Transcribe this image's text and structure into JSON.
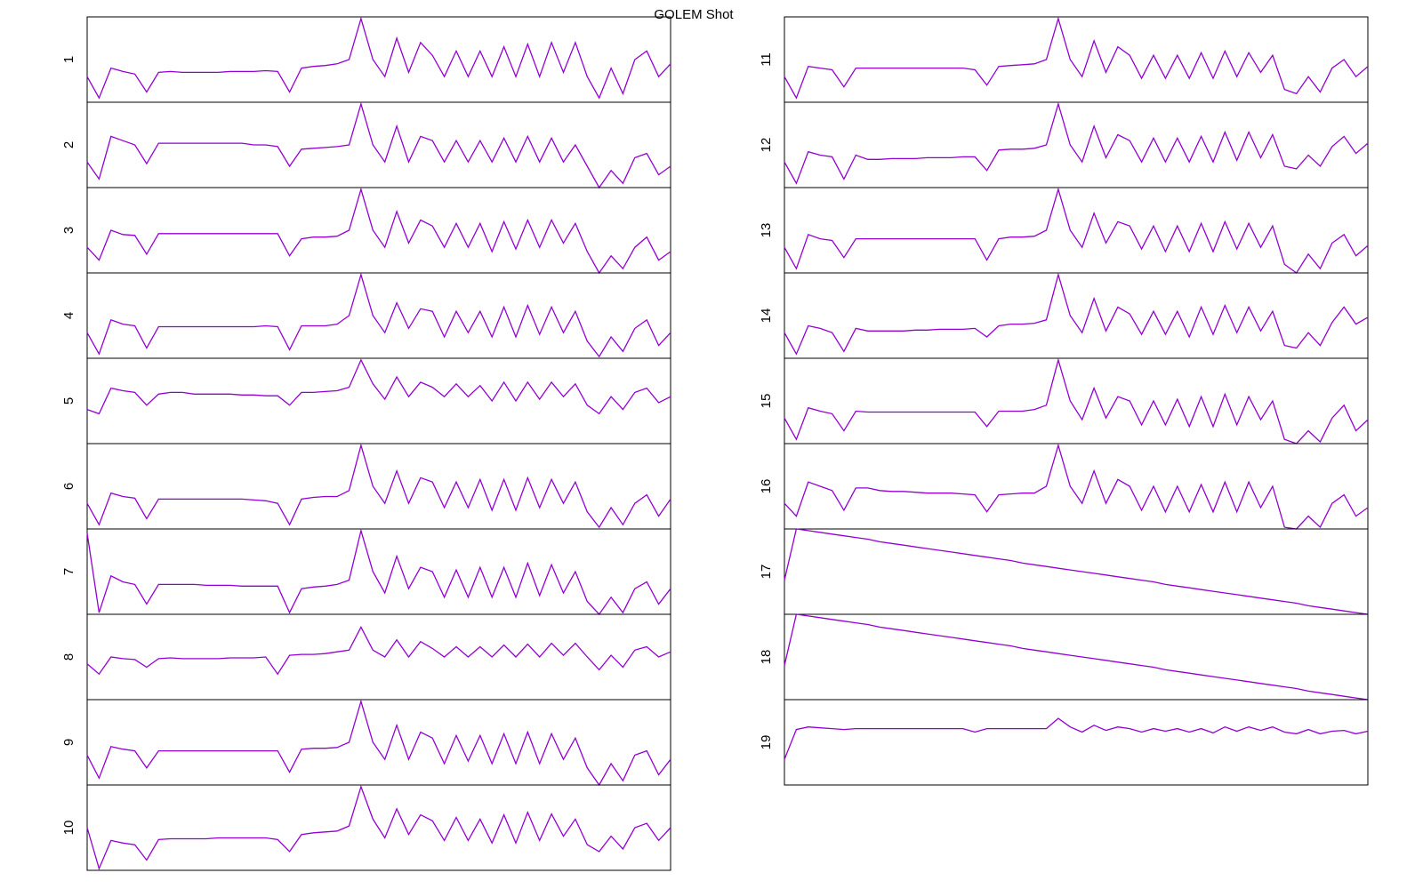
{
  "title": "GOLEM Shot",
  "chart_data": [
    {
      "type": "line",
      "label": "1",
      "color": "#9400d3",
      "ylim": [
        0,
        1
      ],
      "values": [
        0.3,
        0.05,
        0.4,
        0.36,
        0.33,
        0.12,
        0.35,
        0.36,
        0.35,
        0.35,
        0.35,
        0.35,
        0.36,
        0.36,
        0.36,
        0.37,
        0.36,
        0.12,
        0.4,
        0.42,
        0.43,
        0.45,
        0.5,
        0.98,
        0.5,
        0.3,
        0.75,
        0.35,
        0.7,
        0.55,
        0.3,
        0.6,
        0.3,
        0.6,
        0.3,
        0.65,
        0.3,
        0.68,
        0.3,
        0.7,
        0.35,
        0.7,
        0.3,
        0.05,
        0.4,
        0.1,
        0.5,
        0.6,
        0.3,
        0.45
      ]
    },
    {
      "type": "line",
      "label": "2",
      "color": "#9400d3",
      "ylim": [
        0,
        1
      ],
      "values": [
        0.3,
        0.1,
        0.6,
        0.55,
        0.5,
        0.28,
        0.52,
        0.52,
        0.52,
        0.52,
        0.52,
        0.52,
        0.52,
        0.52,
        0.5,
        0.5,
        0.48,
        0.25,
        0.45,
        0.46,
        0.47,
        0.48,
        0.5,
        0.98,
        0.5,
        0.3,
        0.72,
        0.3,
        0.6,
        0.55,
        0.3,
        0.55,
        0.3,
        0.55,
        0.3,
        0.58,
        0.3,
        0.6,
        0.3,
        0.58,
        0.3,
        0.5,
        0.25,
        0.0,
        0.2,
        0.05,
        0.35,
        0.4,
        0.15,
        0.25
      ]
    },
    {
      "type": "line",
      "label": "3",
      "color": "#9400d3",
      "ylim": [
        0,
        1
      ],
      "values": [
        0.3,
        0.15,
        0.5,
        0.45,
        0.44,
        0.22,
        0.46,
        0.46,
        0.46,
        0.46,
        0.46,
        0.46,
        0.46,
        0.46,
        0.46,
        0.46,
        0.46,
        0.2,
        0.4,
        0.42,
        0.42,
        0.43,
        0.5,
        0.98,
        0.5,
        0.3,
        0.72,
        0.35,
        0.62,
        0.55,
        0.3,
        0.58,
        0.3,
        0.58,
        0.25,
        0.6,
        0.28,
        0.62,
        0.3,
        0.62,
        0.35,
        0.58,
        0.25,
        0.0,
        0.2,
        0.05,
        0.3,
        0.42,
        0.15,
        0.25
      ]
    },
    {
      "type": "line",
      "label": "4",
      "color": "#9400d3",
      "ylim": [
        0,
        1
      ],
      "values": [
        0.3,
        0.05,
        0.45,
        0.4,
        0.38,
        0.12,
        0.37,
        0.37,
        0.37,
        0.37,
        0.37,
        0.37,
        0.37,
        0.37,
        0.37,
        0.38,
        0.37,
        0.1,
        0.38,
        0.38,
        0.38,
        0.4,
        0.5,
        0.98,
        0.5,
        0.3,
        0.65,
        0.35,
        0.58,
        0.55,
        0.25,
        0.55,
        0.3,
        0.55,
        0.25,
        0.6,
        0.25,
        0.62,
        0.28,
        0.6,
        0.3,
        0.55,
        0.2,
        0.02,
        0.25,
        0.08,
        0.35,
        0.45,
        0.15,
        0.3
      ]
    },
    {
      "type": "line",
      "label": "5",
      "color": "#9400d3",
      "ylim": [
        0,
        1
      ],
      "values": [
        0.4,
        0.35,
        0.65,
        0.62,
        0.6,
        0.45,
        0.58,
        0.6,
        0.6,
        0.58,
        0.58,
        0.58,
        0.58,
        0.57,
        0.57,
        0.56,
        0.56,
        0.45,
        0.6,
        0.6,
        0.61,
        0.62,
        0.66,
        0.98,
        0.7,
        0.52,
        0.78,
        0.55,
        0.72,
        0.66,
        0.55,
        0.7,
        0.55,
        0.68,
        0.5,
        0.72,
        0.5,
        0.72,
        0.52,
        0.72,
        0.55,
        0.7,
        0.45,
        0.35,
        0.55,
        0.4,
        0.6,
        0.65,
        0.48,
        0.55
      ]
    },
    {
      "type": "line",
      "label": "6",
      "color": "#9400d3",
      "ylim": [
        0,
        1
      ],
      "values": [
        0.3,
        0.05,
        0.42,
        0.38,
        0.36,
        0.12,
        0.35,
        0.35,
        0.35,
        0.35,
        0.35,
        0.35,
        0.35,
        0.35,
        0.34,
        0.33,
        0.3,
        0.05,
        0.35,
        0.37,
        0.38,
        0.38,
        0.45,
        0.98,
        0.5,
        0.3,
        0.68,
        0.3,
        0.6,
        0.55,
        0.25,
        0.55,
        0.25,
        0.58,
        0.22,
        0.58,
        0.22,
        0.6,
        0.25,
        0.58,
        0.3,
        0.55,
        0.2,
        0.02,
        0.25,
        0.05,
        0.3,
        0.4,
        0.15,
        0.35
      ]
    },
    {
      "type": "line",
      "label": "7",
      "color": "#9400d3",
      "ylim": [
        0,
        1
      ],
      "values": [
        0.95,
        0.02,
        0.45,
        0.38,
        0.35,
        0.12,
        0.35,
        0.35,
        0.35,
        0.35,
        0.34,
        0.34,
        0.34,
        0.33,
        0.33,
        0.33,
        0.33,
        0.02,
        0.3,
        0.32,
        0.33,
        0.35,
        0.4,
        0.98,
        0.5,
        0.25,
        0.68,
        0.3,
        0.55,
        0.5,
        0.2,
        0.52,
        0.2,
        0.55,
        0.2,
        0.55,
        0.2,
        0.6,
        0.22,
        0.58,
        0.25,
        0.5,
        0.15,
        0.0,
        0.2,
        0.02,
        0.3,
        0.38,
        0.12,
        0.3
      ]
    },
    {
      "type": "line",
      "label": "8",
      "color": "#9400d3",
      "ylim": [
        0,
        1
      ],
      "values": [
        0.42,
        0.3,
        0.5,
        0.48,
        0.47,
        0.38,
        0.48,
        0.49,
        0.48,
        0.48,
        0.48,
        0.48,
        0.49,
        0.49,
        0.49,
        0.5,
        0.3,
        0.52,
        0.53,
        0.53,
        0.54,
        0.56,
        0.58,
        0.85,
        0.58,
        0.5,
        0.7,
        0.5,
        0.68,
        0.6,
        0.5,
        0.62,
        0.5,
        0.62,
        0.5,
        0.64,
        0.5,
        0.65,
        0.5,
        0.66,
        0.52,
        0.66,
        0.5,
        0.35,
        0.52,
        0.38,
        0.58,
        0.62,
        0.5,
        0.56
      ]
    },
    {
      "type": "line",
      "label": "9",
      "color": "#9400d3",
      "ylim": [
        0,
        1
      ],
      "values": [
        0.35,
        0.08,
        0.45,
        0.42,
        0.4,
        0.2,
        0.4,
        0.4,
        0.4,
        0.4,
        0.4,
        0.4,
        0.4,
        0.4,
        0.4,
        0.4,
        0.4,
        0.15,
        0.42,
        0.43,
        0.43,
        0.44,
        0.5,
        0.98,
        0.5,
        0.3,
        0.7,
        0.3,
        0.62,
        0.55,
        0.25,
        0.58,
        0.28,
        0.58,
        0.25,
        0.6,
        0.25,
        0.62,
        0.25,
        0.6,
        0.3,
        0.55,
        0.2,
        0.0,
        0.25,
        0.05,
        0.35,
        0.4,
        0.12,
        0.3
      ]
    },
    {
      "type": "line",
      "label": "10",
      "color": "#9400d3",
      "ylim": [
        0,
        1
      ],
      "values": [
        0.5,
        0.02,
        0.35,
        0.32,
        0.3,
        0.12,
        0.36,
        0.37,
        0.37,
        0.37,
        0.37,
        0.38,
        0.38,
        0.38,
        0.38,
        0.38,
        0.36,
        0.22,
        0.42,
        0.44,
        0.45,
        0.46,
        0.52,
        0.98,
        0.6,
        0.38,
        0.72,
        0.42,
        0.65,
        0.58,
        0.35,
        0.62,
        0.35,
        0.6,
        0.32,
        0.65,
        0.32,
        0.68,
        0.35,
        0.66,
        0.4,
        0.6,
        0.3,
        0.22,
        0.4,
        0.25,
        0.5,
        0.55,
        0.35,
        0.5
      ]
    },
    {
      "type": "line",
      "label": "11",
      "color": "#9400d3",
      "ylim": [
        0,
        1
      ],
      "values": [
        0.3,
        0.05,
        0.42,
        0.4,
        0.38,
        0.18,
        0.4,
        0.4,
        0.4,
        0.4,
        0.4,
        0.4,
        0.4,
        0.4,
        0.4,
        0.4,
        0.38,
        0.2,
        0.42,
        0.43,
        0.44,
        0.45,
        0.5,
        0.98,
        0.5,
        0.3,
        0.72,
        0.35,
        0.65,
        0.55,
        0.28,
        0.55,
        0.28,
        0.55,
        0.28,
        0.58,
        0.28,
        0.6,
        0.3,
        0.58,
        0.35,
        0.55,
        0.15,
        0.1,
        0.3,
        0.12,
        0.4,
        0.5,
        0.3,
        0.42
      ]
    },
    {
      "type": "line",
      "label": "12",
      "color": "#9400d3",
      "ylim": [
        0,
        1
      ],
      "values": [
        0.3,
        0.05,
        0.42,
        0.38,
        0.36,
        0.1,
        0.38,
        0.33,
        0.33,
        0.34,
        0.34,
        0.34,
        0.35,
        0.35,
        0.35,
        0.36,
        0.36,
        0.2,
        0.44,
        0.45,
        0.45,
        0.46,
        0.5,
        0.98,
        0.5,
        0.3,
        0.72,
        0.35,
        0.62,
        0.55,
        0.3,
        0.58,
        0.3,
        0.58,
        0.3,
        0.6,
        0.3,
        0.65,
        0.32,
        0.65,
        0.35,
        0.62,
        0.25,
        0.22,
        0.38,
        0.25,
        0.48,
        0.6,
        0.4,
        0.52
      ]
    },
    {
      "type": "line",
      "label": "13",
      "color": "#9400d3",
      "ylim": [
        0,
        1
      ],
      "values": [
        0.3,
        0.05,
        0.45,
        0.4,
        0.38,
        0.18,
        0.4,
        0.4,
        0.4,
        0.4,
        0.4,
        0.4,
        0.4,
        0.4,
        0.4,
        0.4,
        0.4,
        0.15,
        0.4,
        0.42,
        0.42,
        0.43,
        0.5,
        0.98,
        0.5,
        0.3,
        0.7,
        0.35,
        0.6,
        0.55,
        0.28,
        0.55,
        0.25,
        0.55,
        0.25,
        0.58,
        0.25,
        0.6,
        0.28,
        0.58,
        0.3,
        0.55,
        0.1,
        0.0,
        0.22,
        0.05,
        0.35,
        0.45,
        0.2,
        0.32
      ]
    },
    {
      "type": "line",
      "label": "14",
      "color": "#9400d3",
      "ylim": [
        0,
        1
      ],
      "values": [
        0.3,
        0.05,
        0.38,
        0.35,
        0.3,
        0.08,
        0.35,
        0.32,
        0.32,
        0.32,
        0.32,
        0.33,
        0.33,
        0.34,
        0.34,
        0.34,
        0.35,
        0.25,
        0.38,
        0.4,
        0.4,
        0.41,
        0.45,
        0.98,
        0.5,
        0.3,
        0.7,
        0.32,
        0.6,
        0.52,
        0.28,
        0.55,
        0.28,
        0.55,
        0.25,
        0.6,
        0.28,
        0.62,
        0.3,
        0.6,
        0.32,
        0.55,
        0.15,
        0.12,
        0.3,
        0.15,
        0.42,
        0.6,
        0.4,
        0.48
      ]
    },
    {
      "type": "line",
      "label": "15",
      "color": "#9400d3",
      "ylim": [
        0,
        1
      ],
      "values": [
        0.3,
        0.05,
        0.42,
        0.38,
        0.35,
        0.15,
        0.38,
        0.37,
        0.37,
        0.37,
        0.37,
        0.37,
        0.37,
        0.37,
        0.37,
        0.37,
        0.37,
        0.2,
        0.38,
        0.38,
        0.38,
        0.4,
        0.45,
        0.98,
        0.5,
        0.28,
        0.65,
        0.3,
        0.55,
        0.5,
        0.22,
        0.5,
        0.22,
        0.52,
        0.2,
        0.55,
        0.2,
        0.58,
        0.22,
        0.55,
        0.28,
        0.5,
        0.05,
        0.0,
        0.15,
        0.02,
        0.3,
        0.45,
        0.15,
        0.28
      ]
    },
    {
      "type": "line",
      "label": "16",
      "color": "#9400d3",
      "ylim": [
        0,
        1
      ],
      "values": [
        0.3,
        0.15,
        0.55,
        0.5,
        0.45,
        0.22,
        0.48,
        0.48,
        0.45,
        0.44,
        0.44,
        0.43,
        0.42,
        0.42,
        0.42,
        0.41,
        0.4,
        0.2,
        0.4,
        0.41,
        0.42,
        0.42,
        0.5,
        0.98,
        0.5,
        0.3,
        0.68,
        0.3,
        0.58,
        0.5,
        0.22,
        0.5,
        0.2,
        0.5,
        0.2,
        0.52,
        0.2,
        0.55,
        0.2,
        0.55,
        0.25,
        0.5,
        0.02,
        0.0,
        0.15,
        0.02,
        0.3,
        0.4,
        0.15,
        0.25
      ]
    },
    {
      "type": "line",
      "label": "17",
      "color": "#9400d3",
      "ylim": [
        0,
        1
      ],
      "values": [
        0.4,
        1.0,
        0.98,
        0.96,
        0.94,
        0.92,
        0.9,
        0.88,
        0.85,
        0.83,
        0.81,
        0.79,
        0.77,
        0.75,
        0.73,
        0.71,
        0.69,
        0.67,
        0.65,
        0.63,
        0.6,
        0.58,
        0.56,
        0.54,
        0.52,
        0.5,
        0.48,
        0.46,
        0.44,
        0.42,
        0.4,
        0.38,
        0.35,
        0.33,
        0.31,
        0.29,
        0.27,
        0.25,
        0.23,
        0.21,
        0.19,
        0.17,
        0.15,
        0.13,
        0.1,
        0.08,
        0.06,
        0.04,
        0.02,
        0.0
      ]
    },
    {
      "type": "line",
      "label": "18",
      "color": "#9400d3",
      "ylim": [
        0,
        1
      ],
      "values": [
        0.4,
        1.0,
        0.98,
        0.96,
        0.94,
        0.92,
        0.9,
        0.88,
        0.85,
        0.83,
        0.81,
        0.79,
        0.77,
        0.75,
        0.73,
        0.71,
        0.69,
        0.67,
        0.65,
        0.63,
        0.6,
        0.58,
        0.56,
        0.54,
        0.52,
        0.5,
        0.48,
        0.46,
        0.44,
        0.42,
        0.4,
        0.38,
        0.35,
        0.33,
        0.31,
        0.29,
        0.27,
        0.25,
        0.23,
        0.21,
        0.19,
        0.17,
        0.15,
        0.13,
        0.1,
        0.08,
        0.06,
        0.04,
        0.02,
        0.0
      ]
    },
    {
      "type": "line",
      "label": "19",
      "color": "#9400d3",
      "ylim": [
        0,
        1
      ],
      "values": [
        0.3,
        0.65,
        0.68,
        0.67,
        0.66,
        0.65,
        0.66,
        0.66,
        0.66,
        0.66,
        0.66,
        0.66,
        0.66,
        0.66,
        0.66,
        0.66,
        0.62,
        0.66,
        0.66,
        0.66,
        0.66,
        0.66,
        0.66,
        0.78,
        0.68,
        0.62,
        0.7,
        0.64,
        0.68,
        0.66,
        0.62,
        0.66,
        0.63,
        0.66,
        0.62,
        0.66,
        0.61,
        0.68,
        0.63,
        0.68,
        0.64,
        0.68,
        0.62,
        0.6,
        0.65,
        0.6,
        0.63,
        0.64,
        0.6,
        0.63
      ]
    }
  ]
}
